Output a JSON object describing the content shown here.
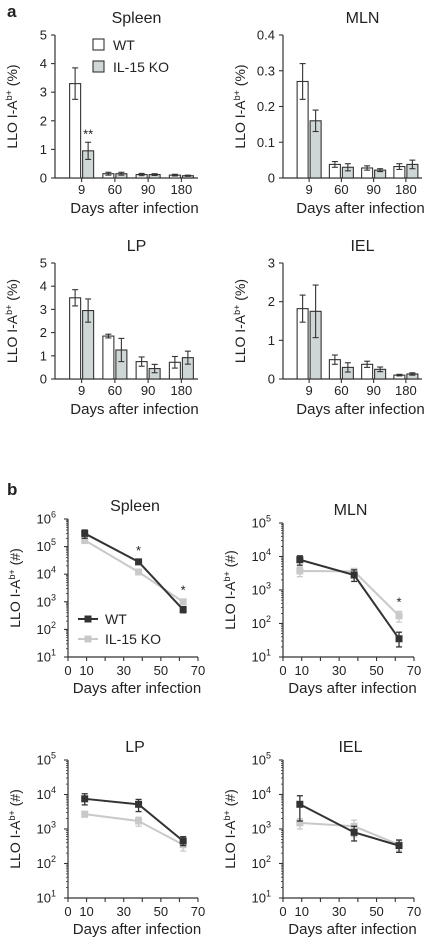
{
  "figure": {
    "panel_a_label": "a",
    "panel_b_label": "b"
  },
  "colors": {
    "wt": "#333333",
    "ko": "#c9c9c9",
    "bar_wt_fill": "#ffffff",
    "bar_ko_fill": "#cfd6d6",
    "axis": "#333333"
  },
  "chart_data": [
    {
      "type": "bar",
      "title": "Spleen",
      "xlabel": "Days after infection",
      "ylabel": "LLO I-A^b+ (%)",
      "categories": [
        "9",
        "60",
        "90",
        "180"
      ],
      "ylim": [
        0,
        5
      ],
      "yticks": [
        0,
        1,
        2,
        3,
        4,
        5
      ],
      "legend": {
        "position": "top-right",
        "entries": [
          "WT",
          "IL-15 KO"
        ]
      },
      "series": [
        {
          "name": "WT",
          "values": [
            3.3,
            0.15,
            0.12,
            0.1
          ],
          "errors": [
            0.55,
            0.05,
            0.04,
            0.03
          ]
        },
        {
          "name": "IL-15 KO",
          "values": [
            0.95,
            0.15,
            0.12,
            0.08
          ],
          "errors": [
            0.3,
            0.05,
            0.03,
            0.02
          ]
        }
      ],
      "annotations": [
        {
          "category": "9",
          "series": "IL-15 KO",
          "text": "**"
        }
      ]
    },
    {
      "type": "bar",
      "title": "MLN",
      "xlabel": "Days after infection",
      "ylabel": "LLO I-A^b+ (%)",
      "categories": [
        "9",
        "60",
        "90",
        "180"
      ],
      "ylim": [
        0,
        0.4
      ],
      "yticks": [
        "0",
        "0.1",
        "0.2",
        "0.3",
        "0.4"
      ],
      "series": [
        {
          "name": "WT",
          "values": [
            0.27,
            0.038,
            0.028,
            0.032
          ],
          "errors": [
            0.05,
            0.008,
            0.006,
            0.008
          ]
        },
        {
          "name": "IL-15 KO",
          "values": [
            0.16,
            0.03,
            0.022,
            0.038
          ],
          "errors": [
            0.03,
            0.01,
            0.004,
            0.012
          ]
        }
      ],
      "annotations": []
    },
    {
      "type": "bar",
      "title": "LP",
      "xlabel": "Days after infection",
      "ylabel": "LLO I-A^b+ (%)",
      "categories": [
        "9",
        "60",
        "90",
        "180"
      ],
      "ylim": [
        0,
        5
      ],
      "yticks": [
        0,
        1,
        2,
        3,
        4,
        5
      ],
      "series": [
        {
          "name": "WT",
          "values": [
            3.5,
            1.85,
            0.75,
            0.72
          ],
          "errors": [
            0.35,
            0.08,
            0.2,
            0.25
          ]
        },
        {
          "name": "IL-15 KO",
          "values": [
            2.95,
            1.25,
            0.45,
            0.92
          ],
          "errors": [
            0.5,
            0.5,
            0.18,
            0.28
          ]
        }
      ],
      "annotations": []
    },
    {
      "type": "bar",
      "title": "IEL",
      "xlabel": "Days after infection",
      "ylabel": "LLO I-A^b+ (%)",
      "categories": [
        "9",
        "60",
        "90",
        "180"
      ],
      "ylim": [
        0,
        3
      ],
      "yticks": [
        0,
        1,
        2,
        3
      ],
      "series": [
        {
          "name": "WT",
          "values": [
            1.82,
            0.5,
            0.38,
            0.1
          ],
          "errors": [
            0.35,
            0.12,
            0.08,
            0.02
          ]
        },
        {
          "name": "IL-15 KO",
          "values": [
            1.75,
            0.3,
            0.25,
            0.13
          ],
          "errors": [
            0.68,
            0.12,
            0.06,
            0.03
          ]
        }
      ],
      "annotations": []
    },
    {
      "type": "line",
      "title": "Spleen",
      "xlabel": "Days after infection",
      "ylabel": "LLO I-A^b+ (#)",
      "xlim": [
        0,
        70
      ],
      "xticks": [
        0,
        10,
        20,
        30,
        40,
        50,
        60,
        70
      ],
      "yscale": "log",
      "ylim_exp": [
        1,
        6
      ],
      "ytick_exps": [
        1,
        2,
        3,
        4,
        5,
        6
      ],
      "legend": {
        "position": "bottom-left",
        "entries": [
          "WT",
          "IL-15 KO"
        ]
      },
      "series": [
        {
          "name": "WT",
          "x": [
            9,
            38,
            62
          ],
          "y": [
            300000,
            28000,
            520
          ],
          "err_lo": [
            100000,
            5000,
            120
          ],
          "err_hi": [
            100000,
            5000,
            150
          ]
        },
        {
          "name": "IL-15 KO",
          "x": [
            9,
            38,
            62
          ],
          "y": [
            170000,
            12000,
            1000
          ],
          "err_lo": [
            40000,
            2000,
            200
          ],
          "err_hi": [
            40000,
            2000,
            200
          ]
        }
      ],
      "annotations": [
        {
          "x": 38,
          "text": "*"
        },
        {
          "x": 62,
          "text": "*"
        }
      ]
    },
    {
      "type": "line",
      "title": "MLN",
      "xlabel": "Days after infection",
      "ylabel": "LLO I-A^b+ (#)",
      "xlim": [
        0,
        70
      ],
      "xticks": [
        0,
        10,
        20,
        30,
        40,
        50,
        60,
        70
      ],
      "yscale": "log",
      "ylim_exp": [
        1,
        5
      ],
      "ytick_exps": [
        1,
        2,
        3,
        4,
        5
      ],
      "series": [
        {
          "name": "WT",
          "x": [
            9,
            38,
            62
          ],
          "y": [
            8000,
            2800,
            35
          ],
          "err_lo": [
            2500,
            1000,
            15
          ],
          "err_hi": [
            2500,
            1200,
            20
          ]
        },
        {
          "name": "IL-15 KO",
          "x": [
            9,
            38,
            62
          ],
          "y": [
            3700,
            3600,
            170
          ],
          "err_lo": [
            1200,
            800,
            60
          ],
          "err_hi": [
            1200,
            800,
            60
          ]
        }
      ],
      "annotations": [
        {
          "x": 62,
          "text": "*"
        }
      ]
    },
    {
      "type": "line",
      "title": "LP",
      "xlabel": "Days after infection",
      "ylabel": "LLO I-A^b+ (#)",
      "xlim": [
        0,
        70
      ],
      "xticks": [
        0,
        10,
        20,
        30,
        40,
        50,
        60,
        70
      ],
      "yscale": "log",
      "ylim_exp": [
        1,
        5
      ],
      "ytick_exps": [
        1,
        2,
        3,
        4,
        5
      ],
      "series": [
        {
          "name": "WT",
          "x": [
            9,
            38,
            62
          ],
          "y": [
            7500,
            5200,
            450
          ],
          "err_lo": [
            2500,
            2000,
            120
          ],
          "err_hi": [
            3000,
            2000,
            150
          ]
        },
        {
          "name": "IL-15 KO",
          "x": [
            9,
            38,
            62
          ],
          "y": [
            2700,
            1700,
            350
          ],
          "err_lo": [
            500,
            500,
            120
          ],
          "err_hi": [
            500,
            500,
            120
          ]
        }
      ],
      "annotations": []
    },
    {
      "type": "line",
      "title": "IEL",
      "xlabel": "Days after infection",
      "ylabel": "LLO I-A^b+ (#)",
      "xlim": [
        0,
        70
      ],
      "xticks": [
        0,
        10,
        20,
        30,
        40,
        50,
        60,
        70
      ],
      "yscale": "log",
      "ylim_exp": [
        1,
        5
      ],
      "ytick_exps": [
        1,
        2,
        3,
        4,
        5
      ],
      "series": [
        {
          "name": "WT",
          "x": [
            9,
            38,
            62
          ],
          "y": [
            5200,
            800,
            330
          ],
          "err_lo": [
            3500,
            350,
            120
          ],
          "err_hi": [
            4000,
            400,
            150
          ]
        },
        {
          "name": "IL-15 KO",
          "x": [
            9,
            38,
            62
          ],
          "y": [
            1500,
            1200,
            350
          ],
          "err_lo": [
            500,
            600,
            120
          ],
          "err_hi": [
            500,
            600,
            120
          ]
        }
      ],
      "annotations": []
    }
  ]
}
